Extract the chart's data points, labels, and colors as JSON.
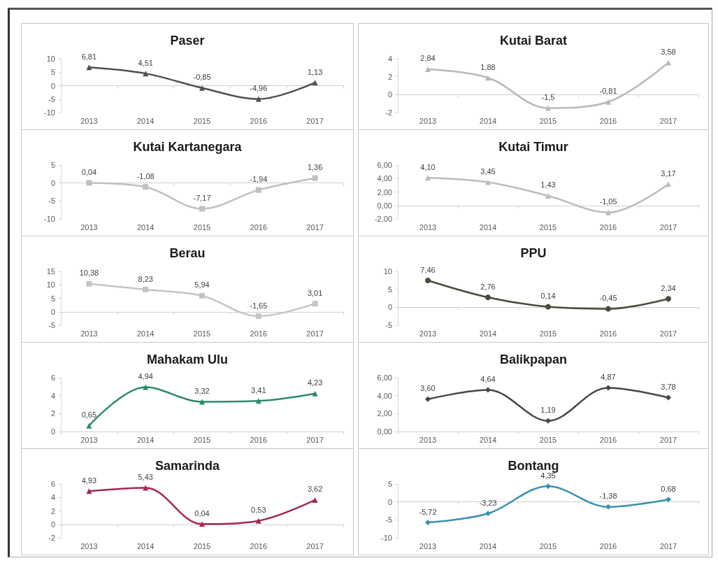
{
  "chart_data": [
    {
      "type": "line",
      "title": "Paser",
      "categories": [
        "2013",
        "2014",
        "2015",
        "2016",
        "2017"
      ],
      "values": [
        6.81,
        4.51,
        -0.85,
        -4.96,
        1.13
      ],
      "value_labels": [
        "6,81",
        "4,51",
        "-0,85",
        "-4,96",
        "1,13"
      ],
      "color": "#505050",
      "marker": "triangle",
      "ylim": [
        -10,
        10
      ],
      "yticks": [
        -10,
        -5,
        0,
        5,
        10
      ]
    },
    {
      "type": "line",
      "title": "Kutai Barat",
      "categories": [
        "2013",
        "2014",
        "2015",
        "2016",
        "2017"
      ],
      "values": [
        2.84,
        1.88,
        -1.5,
        -0.81,
        3.58
      ],
      "value_labels": [
        "2,84",
        "1,88",
        "-1,5",
        "-0,81",
        "3,58"
      ],
      "color": "#b8b8b8",
      "marker": "triangle",
      "ylim": [
        -2,
        4
      ],
      "yticks": [
        -2,
        0,
        2,
        4
      ]
    },
    {
      "type": "line",
      "title": "Kutai Kartanegara",
      "categories": [
        "2013",
        "2014",
        "2015",
        "2016",
        "2017"
      ],
      "values": [
        0.04,
        -1.08,
        -7.17,
        -1.94,
        1.36
      ],
      "value_labels": [
        "0,04",
        "-1,08",
        "-7,17",
        "-1,94",
        "1,36"
      ],
      "color": "#c0c0c0",
      "marker": "square",
      "ylim": [
        -10,
        5
      ],
      "yticks": [
        -10,
        -5,
        0,
        5
      ]
    },
    {
      "type": "line",
      "title": "Kutai Timur",
      "categories": [
        "2013",
        "2014",
        "2015",
        "2016",
        "2017"
      ],
      "values": [
        4.1,
        3.45,
        1.43,
        -1.05,
        3.17
      ],
      "value_labels": [
        "4,10",
        "3,45",
        "1,43",
        "-1,05",
        "3,17"
      ],
      "color": "#bdbdbd",
      "marker": "triangle",
      "ylim": [
        -2,
        6
      ],
      "yticks": [
        {
          "value": -2,
          "label": "-2,00"
        },
        {
          "value": 0,
          "label": "0,00"
        },
        {
          "value": 2,
          "label": "2,00"
        },
        {
          "value": 4,
          "label": "4,00"
        },
        {
          "value": 6,
          "label": "6,00"
        }
      ]
    },
    {
      "type": "line",
      "title": "Berau",
      "categories": [
        "2013",
        "2014",
        "2015",
        "2016",
        "2017"
      ],
      "values": [
        10.38,
        8.23,
        5.94,
        -1.65,
        3.01
      ],
      "value_labels": [
        "10,38",
        "8,23",
        "5,94",
        "-1,65",
        "3,01"
      ],
      "color": "#c4c4c4",
      "marker": "square",
      "ylim": [
        -5,
        15
      ],
      "yticks": [
        -5,
        0,
        5,
        10,
        15
      ]
    },
    {
      "type": "line",
      "title": "PPU",
      "categories": [
        "2013",
        "2014",
        "2015",
        "2016",
        "2017"
      ],
      "values": [
        7.46,
        2.76,
        0.14,
        -0.45,
        2.34
      ],
      "value_labels": [
        "7,46",
        "2,76",
        "0,14",
        "-0,45",
        "2,34"
      ],
      "color": "#4b4b3c",
      "marker": "circle",
      "ylim": [
        -5,
        10
      ],
      "yticks": [
        -5,
        0,
        5,
        10
      ]
    },
    {
      "type": "line",
      "title": "Mahakam Ulu",
      "categories": [
        "2013",
        "2014",
        "2015",
        "2016",
        "2017"
      ],
      "values": [
        0.65,
        4.94,
        3.32,
        3.41,
        4.23
      ],
      "value_labels": [
        "0,65",
        "4,94",
        "3,32",
        "3,41",
        "4,23"
      ],
      "color": "#2a8a6a",
      "marker": "triangle",
      "ylim": [
        0,
        6
      ],
      "yticks": [
        0,
        2,
        4,
        6
      ]
    },
    {
      "type": "line",
      "title": "Balikpapan",
      "categories": [
        "2013",
        "2014",
        "2015",
        "2016",
        "2017"
      ],
      "values": [
        3.6,
        4.64,
        1.19,
        4.87,
        3.78
      ],
      "value_labels": [
        "3,60",
        "4,64",
        "1,19",
        "4,87",
        "3,78"
      ],
      "color": "#474747",
      "marker": "diamond",
      "ylim": [
        0,
        6
      ],
      "yticks": [
        {
          "value": 0,
          "label": "0,00"
        },
        {
          "value": 2,
          "label": "2,00"
        },
        {
          "value": 4,
          "label": "4,00"
        },
        {
          "value": 6,
          "label": "6,00"
        }
      ]
    },
    {
      "type": "line",
      "title": "Samarinda",
      "categories": [
        "2013",
        "2014",
        "2015",
        "2016",
        "2017"
      ],
      "values": [
        4.93,
        5.43,
        0.04,
        0.53,
        3.62
      ],
      "value_labels": [
        "4,93",
        "5,43",
        "0,04",
        "0,53",
        "3,62"
      ],
      "color": "#a3294f",
      "marker": "triangle",
      "ylim": [
        -2,
        6
      ],
      "yticks": [
        -2,
        0,
        2,
        4,
        6
      ]
    },
    {
      "type": "line",
      "title": "Bontang",
      "categories": [
        "2013",
        "2014",
        "2015",
        "2016",
        "2017"
      ],
      "values": [
        -5.72,
        -3.23,
        4.35,
        -1.38,
        0.68
      ],
      "value_labels": [
        "-5,72",
        "-3,23",
        "4,35",
        "-1,38",
        "0,68"
      ],
      "color": "#3b8fb0",
      "marker": "diamond",
      "ylim": [
        -10,
        5
      ],
      "yticks": [
        -10,
        -5,
        0,
        5
      ]
    }
  ]
}
